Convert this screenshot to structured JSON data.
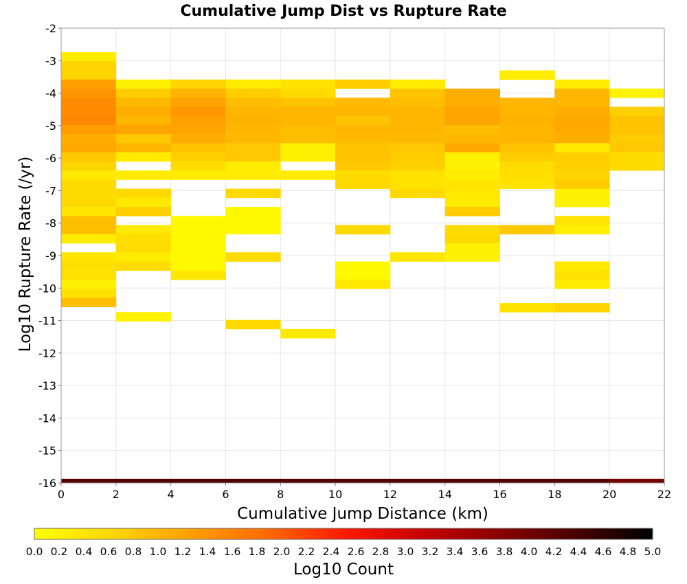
{
  "chart_data": {
    "type": "heatmap",
    "title": "Cumulative Jump Dist vs Rupture Rate",
    "xlabel": "Cumulative Jump Distance (km)",
    "ylabel": "Log10 Rupture Rate (/yr)",
    "xlim": [
      0,
      22
    ],
    "ylim": [
      -16,
      -2
    ],
    "x_ticks": [
      0,
      2,
      4,
      6,
      8,
      10,
      12,
      14,
      16,
      18,
      20,
      22
    ],
    "y_ticks": [
      -2,
      -3,
      -4,
      -5,
      -6,
      -7,
      -8,
      -9,
      -10,
      -11,
      -12,
      -13,
      -14,
      -15,
      -16
    ],
    "x_bin_width": 2,
    "y_bin_width": 0.28,
    "grid": true,
    "colorbar": {
      "label": "Log10 Count",
      "range": [
        0,
        5
      ],
      "ticks": [
        "0.0",
        "0.2",
        "0.4",
        "0.6",
        "0.8",
        "1.0",
        "1.2",
        "1.4",
        "1.6",
        "1.8",
        "2.0",
        "2.2",
        "2.4",
        "2.6",
        "2.8",
        "3.0",
        "3.2",
        "3.4",
        "3.6",
        "3.8",
        "4.0",
        "4.2",
        "4.4",
        "4.6",
        "4.8",
        "5.0"
      ],
      "colormap": [
        "#ffff00",
        "#ffd700",
        "#ffa000",
        "#ff6a00",
        "#ff1a00",
        "#c80000",
        "#8a0000",
        "#4a0000",
        "#000000"
      ],
      "placement": "bottom"
    },
    "columns": [
      {
        "x": 1,
        "cells": [
          [
            -2.88,
            0.3
          ],
          [
            -3.16,
            0.65
          ],
          [
            -3.44,
            0.65
          ],
          [
            -3.72,
            1.25
          ],
          [
            -4.0,
            1.4
          ],
          [
            -4.28,
            1.5
          ],
          [
            -4.56,
            1.5
          ],
          [
            -4.84,
            1.55
          ],
          [
            -5.12,
            1.3
          ],
          [
            -5.4,
            1.1
          ],
          [
            -5.68,
            1.15
          ],
          [
            -5.96,
            0.8
          ],
          [
            -6.24,
            0.65
          ],
          [
            -6.52,
            0.35
          ],
          [
            -6.8,
            0.55
          ],
          [
            -7.08,
            0.55
          ],
          [
            -7.36,
            0.6
          ],
          [
            -7.64,
            0.4
          ],
          [
            -7.92,
            0.9
          ],
          [
            -8.2,
            0.9
          ],
          [
            -8.48,
            0.3
          ],
          [
            -9.04,
            0.4
          ],
          [
            -9.32,
            0.5
          ],
          [
            -9.6,
            0.45
          ],
          [
            -9.88,
            0.2
          ],
          [
            -10.16,
            0.45
          ],
          [
            -10.44,
            0.9
          ]
        ]
      },
      {
        "x": 3,
        "cells": [
          [
            -3.72,
            0.2
          ],
          [
            -4.0,
            0.75
          ],
          [
            -4.28,
            0.95
          ],
          [
            -4.56,
            1.1
          ],
          [
            -4.84,
            1.0
          ],
          [
            -5.12,
            1.2
          ],
          [
            -5.4,
            0.8
          ],
          [
            -5.68,
            1.0
          ],
          [
            -5.96,
            0.3
          ],
          [
            -6.52,
            0.3
          ],
          [
            -7.08,
            0.6
          ],
          [
            -7.36,
            0.35
          ],
          [
            -7.64,
            0.7
          ],
          [
            -8.2,
            0.35
          ],
          [
            -8.48,
            0.5
          ],
          [
            -8.76,
            0.55
          ],
          [
            -9.04,
            0.3
          ],
          [
            -9.32,
            0.55
          ],
          [
            -10.88,
            0.2
          ]
        ]
      },
      {
        "x": 5,
        "cells": [
          [
            -3.72,
            0.65
          ],
          [
            -4.0,
            1.05
          ],
          [
            -4.28,
            1.2
          ],
          [
            -4.56,
            1.35
          ],
          [
            -4.84,
            1.25
          ],
          [
            -5.12,
            1.2
          ],
          [
            -5.4,
            1.1
          ],
          [
            -5.68,
            0.85
          ],
          [
            -5.96,
            0.7
          ],
          [
            -6.24,
            0.55
          ],
          [
            -6.52,
            0.3
          ],
          [
            -7.92,
            0.1
          ],
          [
            -8.2,
            0.1
          ],
          [
            -8.48,
            0.1
          ],
          [
            -8.76,
            0.1
          ],
          [
            -9.04,
            0.1
          ],
          [
            -9.32,
            0.1
          ],
          [
            -9.6,
            0.4
          ]
        ]
      },
      {
        "x": 7,
        "cells": [
          [
            -3.72,
            0.3
          ],
          [
            -4.0,
            0.75
          ],
          [
            -4.28,
            0.9
          ],
          [
            -4.56,
            1.0
          ],
          [
            -4.84,
            1.05
          ],
          [
            -5.12,
            1.0
          ],
          [
            -5.4,
            0.95
          ],
          [
            -5.68,
            0.8
          ],
          [
            -5.96,
            0.8
          ],
          [
            -6.24,
            0.3
          ],
          [
            -6.52,
            0.3
          ],
          [
            -7.08,
            0.6
          ],
          [
            -7.64,
            0.1
          ],
          [
            -7.92,
            0.1
          ],
          [
            -8.2,
            0.1
          ],
          [
            -9.04,
            0.55
          ],
          [
            -11.12,
            0.6
          ]
        ]
      },
      {
        "x": 9,
        "cells": [
          [
            -3.72,
            0.45
          ],
          [
            -4.0,
            0.55
          ],
          [
            -4.28,
            0.85
          ],
          [
            -4.56,
            1.0
          ],
          [
            -4.84,
            1.0
          ],
          [
            -5.12,
            0.9
          ],
          [
            -5.4,
            0.9
          ],
          [
            -5.68,
            0.25
          ],
          [
            -5.96,
            0.25
          ],
          [
            -6.52,
            0.3
          ],
          [
            -11.4,
            0.35
          ]
        ]
      },
      {
        "x": 11,
        "cells": [
          [
            -3.72,
            0.75
          ],
          [
            -4.28,
            0.95
          ],
          [
            -4.56,
            1.0
          ],
          [
            -4.84,
            0.85
          ],
          [
            -5.12,
            1.0
          ],
          [
            -5.4,
            0.95
          ],
          [
            -5.68,
            0.85
          ],
          [
            -5.96,
            0.85
          ],
          [
            -6.24,
            0.8
          ],
          [
            -6.52,
            0.55
          ],
          [
            -6.8,
            0.6
          ],
          [
            -8.2,
            0.6
          ],
          [
            -9.32,
            0.1
          ],
          [
            -9.6,
            0.1
          ],
          [
            -9.88,
            0.35
          ]
        ]
      },
      {
        "x": 13,
        "cells": [
          [
            -3.72,
            0.3
          ],
          [
            -4.0,
            0.85
          ],
          [
            -4.28,
            0.9
          ],
          [
            -4.56,
            1.0
          ],
          [
            -4.84,
            1.0
          ],
          [
            -5.12,
            1.0
          ],
          [
            -5.4,
            0.95
          ],
          [
            -5.68,
            0.8
          ],
          [
            -5.96,
            0.75
          ],
          [
            -6.24,
            0.7
          ],
          [
            -6.52,
            0.45
          ],
          [
            -6.8,
            0.45
          ],
          [
            -7.08,
            0.6
          ],
          [
            -9.04,
            0.4
          ]
        ]
      },
      {
        "x": 15,
        "cells": [
          [
            -4.0,
            1.1
          ],
          [
            -4.28,
            1.1
          ],
          [
            -4.56,
            1.2
          ],
          [
            -4.84,
            1.2
          ],
          [
            -5.12,
            0.9
          ],
          [
            -5.4,
            1.0
          ],
          [
            -5.68,
            1.15
          ],
          [
            -5.96,
            0.2
          ],
          [
            -6.24,
            0.2
          ],
          [
            -6.52,
            0.3
          ],
          [
            -6.8,
            0.4
          ],
          [
            -7.08,
            0.35
          ],
          [
            -7.36,
            0.3
          ],
          [
            -7.64,
            0.75
          ],
          [
            -8.2,
            0.55
          ],
          [
            -8.48,
            0.6
          ],
          [
            -8.76,
            0.2
          ],
          [
            -9.04,
            0.2
          ]
        ]
      },
      {
        "x": 17,
        "cells": [
          [
            -3.44,
            0.3
          ],
          [
            -4.28,
            1.0
          ],
          [
            -4.56,
            1.0
          ],
          [
            -4.84,
            1.05
          ],
          [
            -5.12,
            1.0
          ],
          [
            -5.4,
            1.0
          ],
          [
            -5.68,
            0.85
          ],
          [
            -5.96,
            0.75
          ],
          [
            -6.24,
            0.55
          ],
          [
            -6.52,
            0.5
          ],
          [
            -6.8,
            0.45
          ],
          [
            -8.2,
            0.8
          ],
          [
            -10.6,
            0.45
          ]
        ]
      },
      {
        "x": 19,
        "cells": [
          [
            -3.72,
            0.3
          ],
          [
            -4.0,
            1.0
          ],
          [
            -4.28,
            1.0
          ],
          [
            -4.56,
            1.1
          ],
          [
            -4.84,
            1.15
          ],
          [
            -5.12,
            1.15
          ],
          [
            -5.4,
            1.1
          ],
          [
            -5.68,
            0.35
          ],
          [
            -5.96,
            0.7
          ],
          [
            -6.24,
            0.7
          ],
          [
            -6.52,
            0.65
          ],
          [
            -6.8,
            0.75
          ],
          [
            -7.08,
            0.2
          ],
          [
            -7.36,
            0.2
          ],
          [
            -7.92,
            0.4
          ],
          [
            -8.2,
            0.25
          ],
          [
            -9.32,
            0.35
          ],
          [
            -9.6,
            0.45
          ],
          [
            -9.88,
            0.3
          ],
          [
            -10.6,
            0.65
          ]
        ]
      },
      {
        "x": 21,
        "cells": [
          [
            -4.0,
            0.2
          ],
          [
            -4.56,
            0.7
          ],
          [
            -4.84,
            0.85
          ],
          [
            -5.12,
            0.85
          ],
          [
            -5.4,
            0.75
          ],
          [
            -5.68,
            0.8
          ],
          [
            -5.96,
            0.55
          ],
          [
            -6.24,
            0.55
          ]
        ]
      }
    ],
    "bottom_row": {
      "y": -15.94,
      "values": [
        4.25,
        4.3,
        4.35,
        4.35,
        4.3,
        4.3,
        4.3,
        4.3,
        4.3,
        4.3,
        3.95
      ]
    }
  }
}
